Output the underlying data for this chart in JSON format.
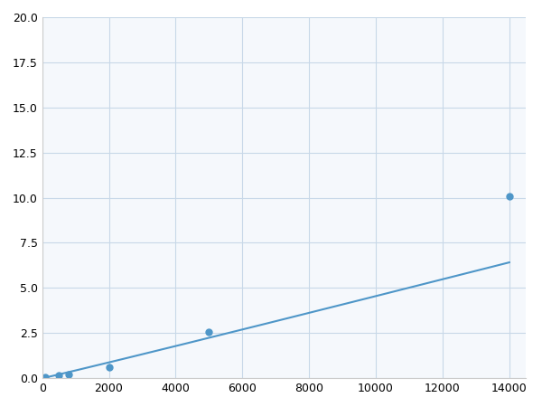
{
  "x_points": [
    100,
    500,
    800,
    2000,
    5000,
    14000
  ],
  "y_points": [
    0.08,
    0.15,
    0.2,
    0.62,
    2.55,
    10.1
  ],
  "line_color": "#4e96c8",
  "marker_color": "#4e96c8",
  "marker_size": 5,
  "xlim": [
    0,
    14500
  ],
  "ylim": [
    0,
    20
  ],
  "xticks": [
    0,
    2000,
    4000,
    6000,
    8000,
    10000,
    12000,
    14000
  ],
  "yticks": [
    0.0,
    2.5,
    5.0,
    7.5,
    10.0,
    12.5,
    15.0,
    17.5,
    20.0
  ],
  "grid_color": "#c8d8e8",
  "background_color": "#f5f8fc",
  "figsize": [
    6.0,
    4.5
  ],
  "dpi": 100
}
